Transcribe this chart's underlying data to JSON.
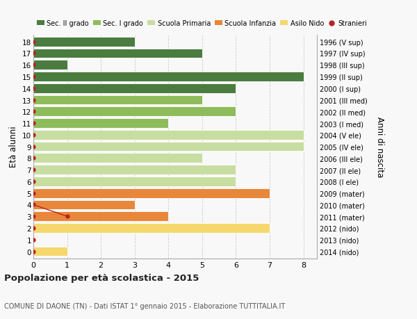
{
  "ages": [
    0,
    1,
    2,
    3,
    4,
    5,
    6,
    7,
    8,
    9,
    10,
    11,
    12,
    13,
    14,
    15,
    16,
    17,
    18
  ],
  "right_labels": [
    "2014 (nido)",
    "2013 (nido)",
    "2012 (nido)",
    "2011 (mater)",
    "2010 (mater)",
    "2009 (mater)",
    "2008 (I ele)",
    "2007 (II ele)",
    "2006 (III ele)",
    "2005 (IV ele)",
    "2004 (V ele)",
    "2003 (I med)",
    "2002 (II med)",
    "2001 (III med)",
    "2000 (I sup)",
    "1999 (II sup)",
    "1998 (III sup)",
    "1997 (IV sup)",
    "1996 (V sup)"
  ],
  "bar_values": [
    1,
    0,
    7,
    4,
    3,
    7,
    6,
    6,
    5,
    8,
    8,
    4,
    6,
    5,
    6,
    8,
    1,
    5,
    3
  ],
  "bar_colors": [
    "#f5d76e",
    "#f5d76e",
    "#f5d76e",
    "#e8873a",
    "#e8873a",
    "#e8873a",
    "#c8dda0",
    "#c8dda0",
    "#c8dda0",
    "#c8dda0",
    "#c8dda0",
    "#8fbc5a",
    "#8fbc5a",
    "#8fbc5a",
    "#4a7c3f",
    "#4a7c3f",
    "#4a7c3f",
    "#4a7c3f",
    "#4a7c3f"
  ],
  "stranieri_x": [
    0,
    0,
    0,
    1,
    0,
    0,
    0,
    0,
    0,
    0,
    0,
    0,
    0,
    0,
    0,
    0,
    0,
    0,
    0
  ],
  "xlim": [
    0,
    8.4
  ],
  "ylim": [
    -0.6,
    18.6
  ],
  "ylabel": "Età alunni",
  "right_ylabel": "Anni di nascita",
  "title": "Popolazione per età scolastica - 2015",
  "subtitle": "COMUNE DI DAONE (TN) - Dati ISTAT 1° gennaio 2015 - Elaborazione TUTTITALIA.IT",
  "legend_labels": [
    "Sec. II grado",
    "Sec. I grado",
    "Scuola Primaria",
    "Scuola Infanzia",
    "Asilo Nido",
    "Stranieri"
  ],
  "legend_colors": [
    "#4a7c3f",
    "#8fbc5a",
    "#c8dda0",
    "#e8873a",
    "#f5d76e",
    "#bb2222"
  ],
  "bar_height": 0.82,
  "background_color": "#f8f8f8",
  "grid_color": "#cccccc",
  "dot_color": "#bb2222",
  "stranieri_line_color": "#bb2222"
}
